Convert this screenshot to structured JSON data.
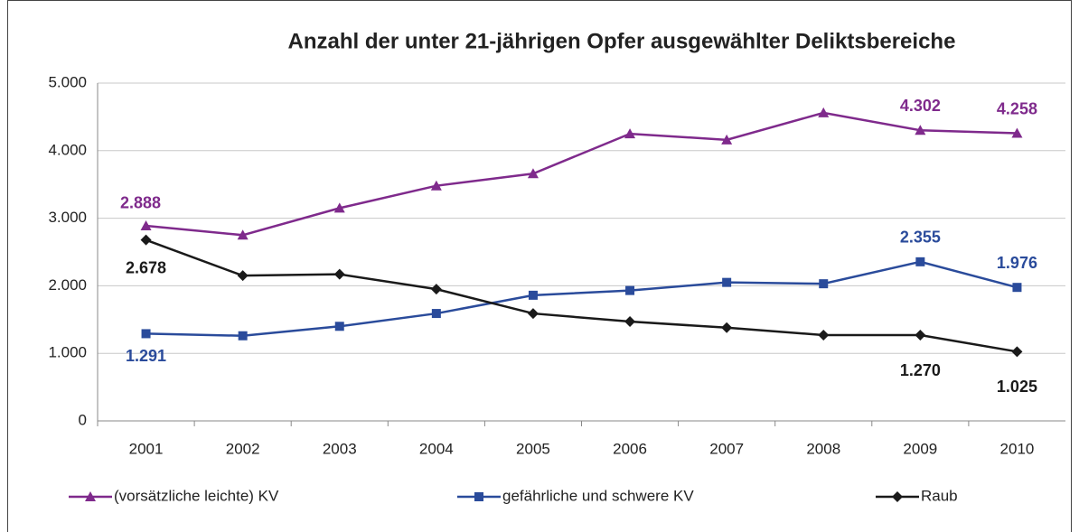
{
  "chart_data": {
    "type": "line",
    "title": "Anzahl der unter 21-jährigen Opfer ausgewählter Deliktsbereiche",
    "categories": [
      "2001",
      "2002",
      "2003",
      "2004",
      "2005",
      "2006",
      "2007",
      "2008",
      "2009",
      "2010"
    ],
    "series": [
      {
        "name": "(vorsätzliche leichte) KV",
        "color": "#7f2a8c",
        "marker": "triangle",
        "values": [
          2888,
          2750,
          3150,
          3480,
          3660,
          4250,
          4160,
          4560,
          4302,
          4258
        ],
        "value_labels": [
          "2.888",
          null,
          null,
          null,
          null,
          null,
          null,
          null,
          "4.302",
          "4.258"
        ]
      },
      {
        "name": "gefährliche und schwere KV",
        "color": "#2a4b9b",
        "marker": "square",
        "values": [
          1291,
          1260,
          1400,
          1590,
          1860,
          1930,
          2050,
          2030,
          2355,
          1976
        ],
        "value_labels": [
          "1.291",
          null,
          null,
          null,
          null,
          null,
          null,
          null,
          "2.355",
          "1.976"
        ]
      },
      {
        "name": "Raub",
        "color": "#1a1a1a",
        "marker": "diamond",
        "values": [
          2678,
          2150,
          2170,
          1950,
          1590,
          1470,
          1380,
          1270,
          1270,
          1025
        ],
        "value_labels": [
          "2.678",
          null,
          null,
          null,
          null,
          null,
          null,
          null,
          "1.270",
          "1.025"
        ]
      }
    ],
    "ylim": [
      0,
      5000
    ],
    "yticks": [
      0,
      {
        "value": 1000,
        "label": "1.000"
      },
      {
        "value": 2000,
        "label": "2.000"
      },
      {
        "value": 3000,
        "label": "3.000"
      },
      {
        "value": 4000,
        "label": "4.000"
      },
      {
        "value": 5000,
        "label": "5.000"
      }
    ],
    "grid": true,
    "legend": "bottom"
  }
}
